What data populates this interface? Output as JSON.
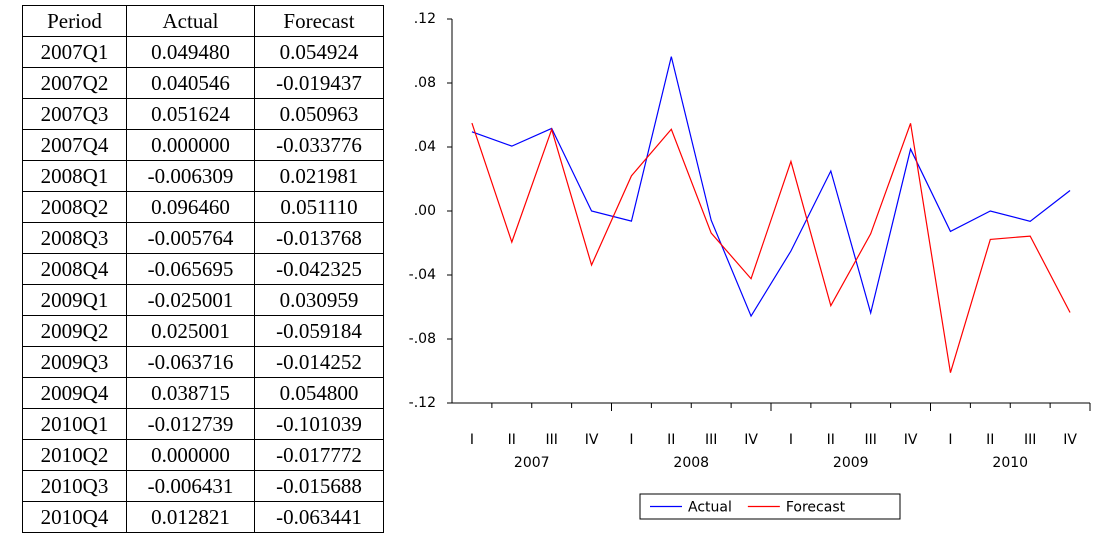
{
  "table": {
    "header": [
      "Period",
      "Actual",
      "Forecast"
    ],
    "rows": [
      [
        "2007Q1",
        "0.049480",
        "0.054924"
      ],
      [
        "2007Q2",
        "0.040546",
        "-0.019437"
      ],
      [
        "2007Q3",
        "0.051624",
        "0.050963"
      ],
      [
        "2007Q4",
        "0.000000",
        "-0.033776"
      ],
      [
        "2008Q1",
        "-0.006309",
        "0.021981"
      ],
      [
        "2008Q2",
        "0.096460",
        "0.051110"
      ],
      [
        "2008Q3",
        "-0.005764",
        "-0.013768"
      ],
      [
        "2008Q4",
        "-0.065695",
        "-0.042325"
      ],
      [
        "2009Q1",
        "-0.025001",
        "0.030959"
      ],
      [
        "2009Q2",
        "0.025001",
        "-0.059184"
      ],
      [
        "2009Q3",
        "-0.063716",
        "-0.014252"
      ],
      [
        "2009Q4",
        "0.038715",
        "0.054800"
      ],
      [
        "2010Q1",
        "-0.012739",
        "-0.101039"
      ],
      [
        "2010Q2",
        "0.000000",
        "-0.017772"
      ],
      [
        "2010Q3",
        "-0.006431",
        "-0.015688"
      ],
      [
        "2010Q4",
        "0.012821",
        "-0.063441"
      ]
    ]
  },
  "chart_data": {
    "type": "line",
    "categories": [
      "I",
      "II",
      "III",
      "IV",
      "I",
      "II",
      "III",
      "IV",
      "I",
      "II",
      "III",
      "IV",
      "I",
      "II",
      "III",
      "IV"
    ],
    "year_labels": [
      "2007",
      "2008",
      "2009",
      "2010"
    ],
    "series": [
      {
        "name": "Actual",
        "color": "#0000ff",
        "values": [
          0.04948,
          0.040546,
          0.051624,
          0.0,
          -0.006309,
          0.09646,
          -0.005764,
          -0.065695,
          -0.025001,
          0.025001,
          -0.063716,
          0.038715,
          -0.012739,
          0.0,
          -0.006431,
          0.012821
        ]
      },
      {
        "name": "Forecast",
        "color": "#ff0000",
        "values": [
          0.054924,
          -0.019437,
          0.050963,
          -0.033776,
          0.021981,
          0.05111,
          -0.013768,
          -0.042325,
          0.030959,
          -0.059184,
          -0.014252,
          0.0548,
          -0.101039,
          -0.017772,
          -0.015688,
          -0.063441
        ]
      }
    ],
    "ylim": [
      -0.12,
      0.12
    ],
    "yticks": [
      {
        "value": -0.12,
        "label": "-.12"
      },
      {
        "value": -0.08,
        "label": "-.08"
      },
      {
        "value": -0.04,
        "label": "-.04"
      },
      {
        "value": 0.0,
        "label": ".00"
      },
      {
        "value": 0.04,
        "label": ".04"
      },
      {
        "value": 0.08,
        "label": ".08"
      },
      {
        "value": 0.12,
        "label": ".12"
      }
    ],
    "legend": "bottom"
  }
}
